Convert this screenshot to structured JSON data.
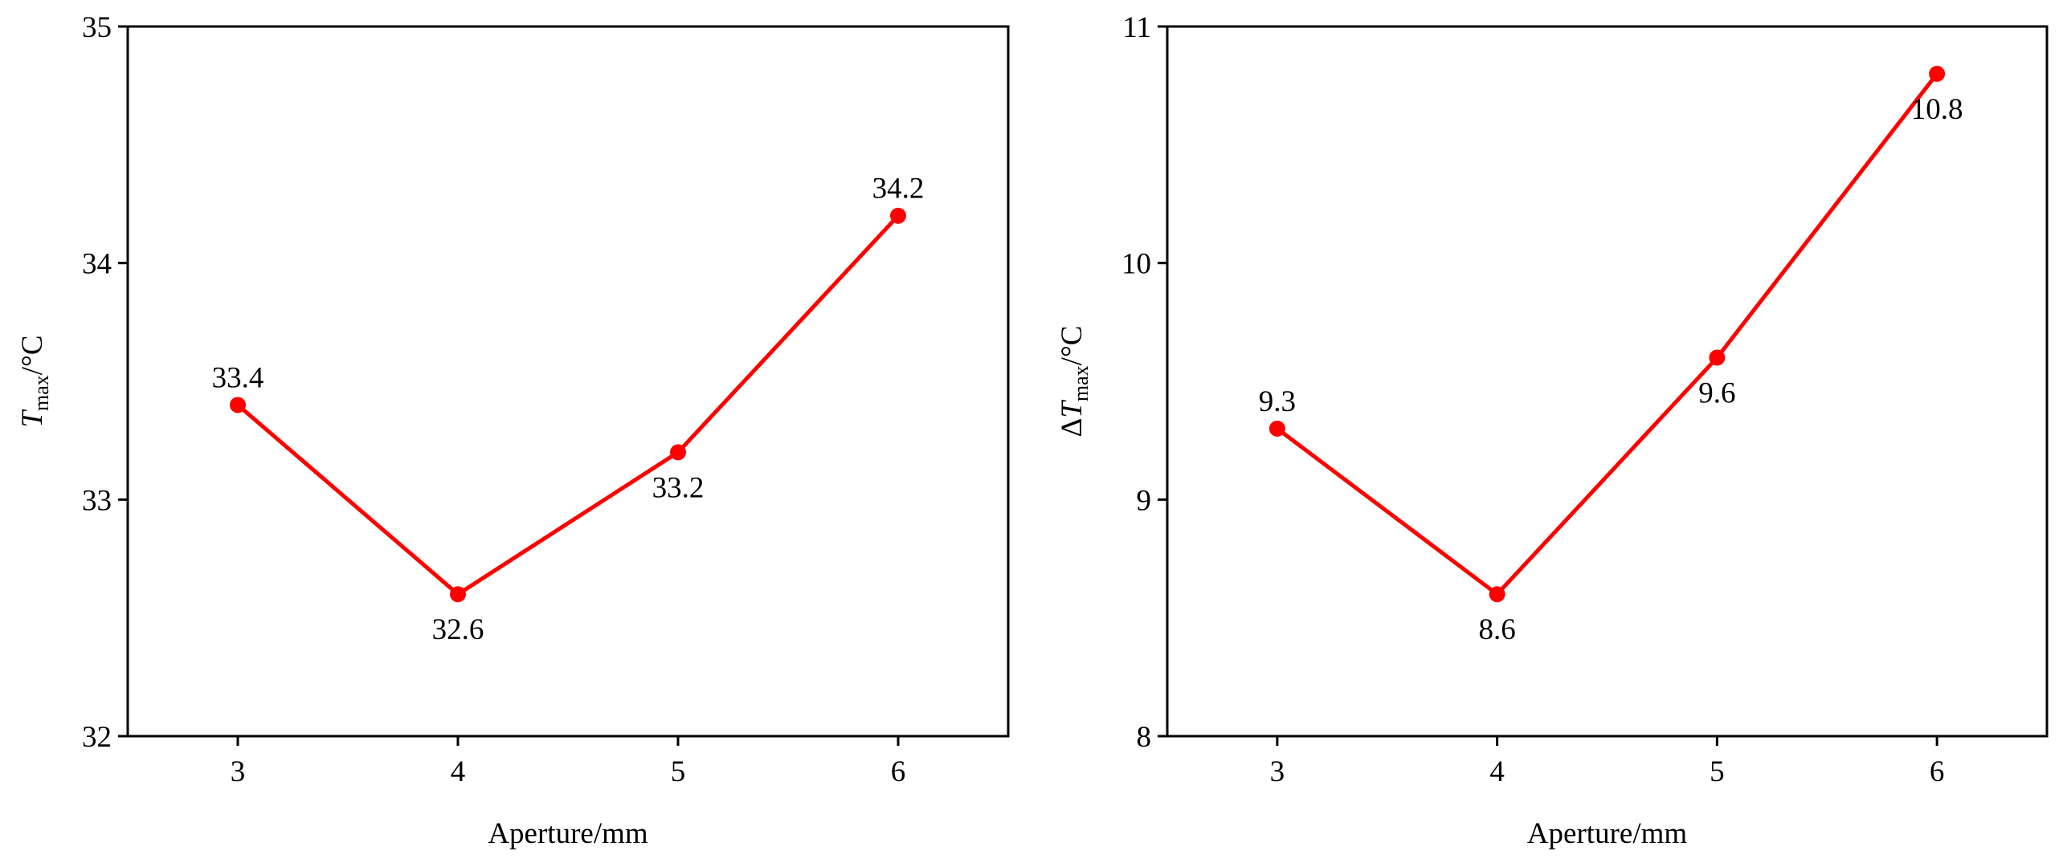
{
  "chart_data": [
    {
      "type": "line",
      "x": [
        3,
        4,
        5,
        6
      ],
      "values": [
        33.4,
        32.6,
        33.2,
        34.2
      ],
      "color": "#ff0000",
      "xlim": [
        2.5,
        6.5
      ],
      "xticks": [
        3,
        4,
        5,
        6
      ],
      "ylim": [
        32,
        35
      ],
      "yticks": [
        32,
        33,
        34,
        35
      ],
      "x_label": "Aperture/mm",
      "y_label": {
        "symbol": "T",
        "subscript": "max",
        "suffix": "/°C"
      }
    },
    {
      "type": "line",
      "x": [
        3,
        4,
        5,
        6
      ],
      "values": [
        9.3,
        8.6,
        9.6,
        10.8
      ],
      "color": "#ff0000",
      "xlim": [
        2.5,
        6.5
      ],
      "xticks": [
        3,
        4,
        5,
        6
      ],
      "ylim": [
        8,
        11
      ],
      "yticks": [
        8,
        9,
        10,
        11
      ],
      "x_label": "Aperture/mm",
      "y_label": {
        "prefix": "Δ",
        "symbol": "T",
        "subscript": "max",
        "suffix": "/°C"
      }
    }
  ]
}
